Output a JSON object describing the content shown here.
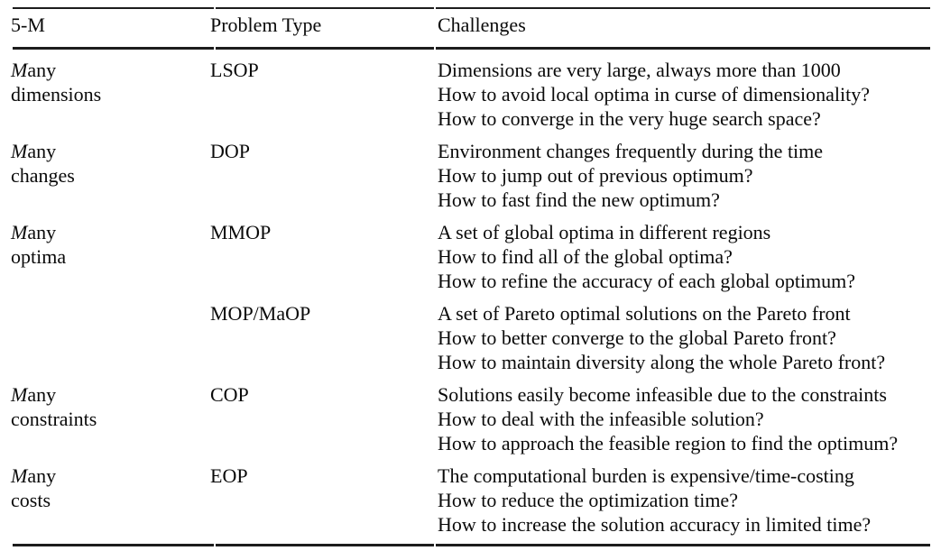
{
  "page": {
    "background": "#ffffff",
    "text_color": "#0a0a0a",
    "rule_color": "#1c1c1c"
  },
  "table": {
    "columns": [
      "5-M",
      "Problem Type",
      "Challenges"
    ],
    "rows": [
      {
        "term_italic": "M",
        "term_rest": "any",
        "term_line2": "dimensions",
        "problem_type": "LSOP",
        "challenges": [
          "Dimensions are very large, always more than 1000",
          "How to avoid local optima in curse of dimensionality?",
          "How to converge in the very huge search space?"
        ]
      },
      {
        "term_italic": "M",
        "term_rest": "any",
        "term_line2": "changes",
        "problem_type": "DOP",
        "challenges": [
          "Environment changes frequently during the time",
          "How to jump out of previous optimum?",
          "How to fast find the new optimum?"
        ]
      },
      {
        "term_italic": "M",
        "term_rest": "any",
        "term_line2": "optima",
        "problem_type": "MMOP",
        "challenges": [
          "A set of global optima in different regions",
          "How to find all of the global optima?",
          "How to refine the accuracy of each global optimum?"
        ]
      },
      {
        "term_italic": "",
        "term_rest": "",
        "term_line2": "",
        "problem_type": "MOP/MaOP",
        "challenges": [
          "A set of Pareto optimal solutions on the Pareto front",
          "How to better converge to the global Pareto front?",
          "How to maintain diversity along the whole Pareto front?"
        ]
      },
      {
        "term_italic": "M",
        "term_rest": "any",
        "term_line2": "constraints",
        "problem_type": "COP",
        "challenges": [
          "Solutions easily become infeasible due to the constraints",
          "How to deal with the infeasible solution?",
          "How to approach the feasible region to find the optimum?"
        ]
      },
      {
        "term_italic": "M",
        "term_rest": "any",
        "term_line2": "costs",
        "problem_type": "EOP",
        "challenges": [
          "The computational burden is expensive/time-costing",
          "How to reduce the optimization time?",
          "How to increase the solution accuracy in limited time?"
        ]
      }
    ]
  }
}
